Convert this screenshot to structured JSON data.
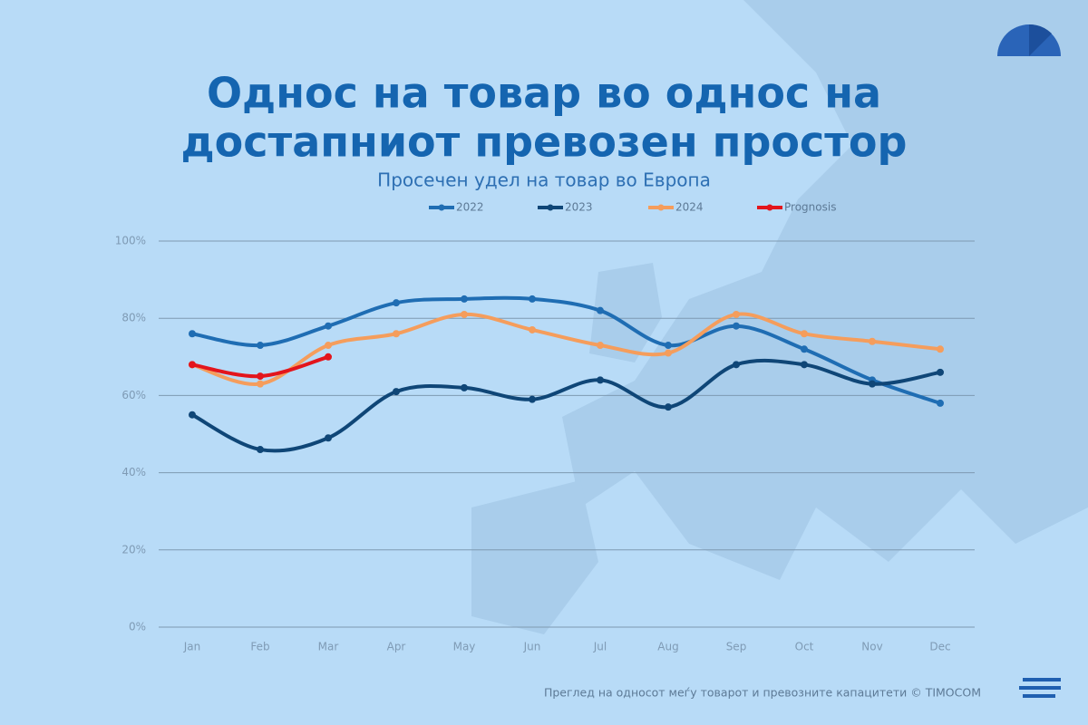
{
  "chart_data": {
    "type": "line",
    "title": [
      "Однос на товар во однос на",
      "достапниот превозен простор"
    ],
    "subtitle": "Просечен удел на товар во Европа",
    "footer": "Преглед на односот меѓу товарот и превозните капацитети © TIMOCOM",
    "categories": [
      "Jan",
      "Feb",
      "Mar",
      "Apr",
      "May",
      "Jun",
      "Jul",
      "Aug",
      "Sep",
      "Oct",
      "Nov",
      "Dec"
    ],
    "series": [
      {
        "name": "2022",
        "color": "#1f6db3",
        "values": [
          76,
          73,
          78,
          84,
          85,
          85,
          82,
          73,
          78,
          72,
          64,
          58
        ]
      },
      {
        "name": "2023",
        "color": "#0f4677",
        "values": [
          55,
          46,
          49,
          61,
          62,
          59,
          64,
          57,
          68,
          68,
          63,
          66
        ]
      },
      {
        "name": "2024",
        "color": "#f59d5c",
        "values": [
          68,
          63,
          73,
          76,
          81,
          77,
          73,
          71,
          81,
          76,
          74,
          72
        ]
      },
      {
        "name": "Prognosis",
        "color": "#e3151c",
        "values": [
          68,
          65,
          70,
          null,
          null,
          null,
          null,
          null,
          null,
          null,
          null,
          null
        ]
      }
    ],
    "ylim": [
      0,
      100
    ],
    "yticks": [
      {
        "value": 0,
        "label": "0%"
      },
      {
        "value": 20,
        "label": "20%"
      },
      {
        "value": 40,
        "label": "40%"
      },
      {
        "value": 60,
        "label": "60%"
      },
      {
        "value": 80,
        "label": "80%"
      },
      {
        "value": 100,
        "label": "100%"
      }
    ],
    "grid": true,
    "legend": "top"
  }
}
